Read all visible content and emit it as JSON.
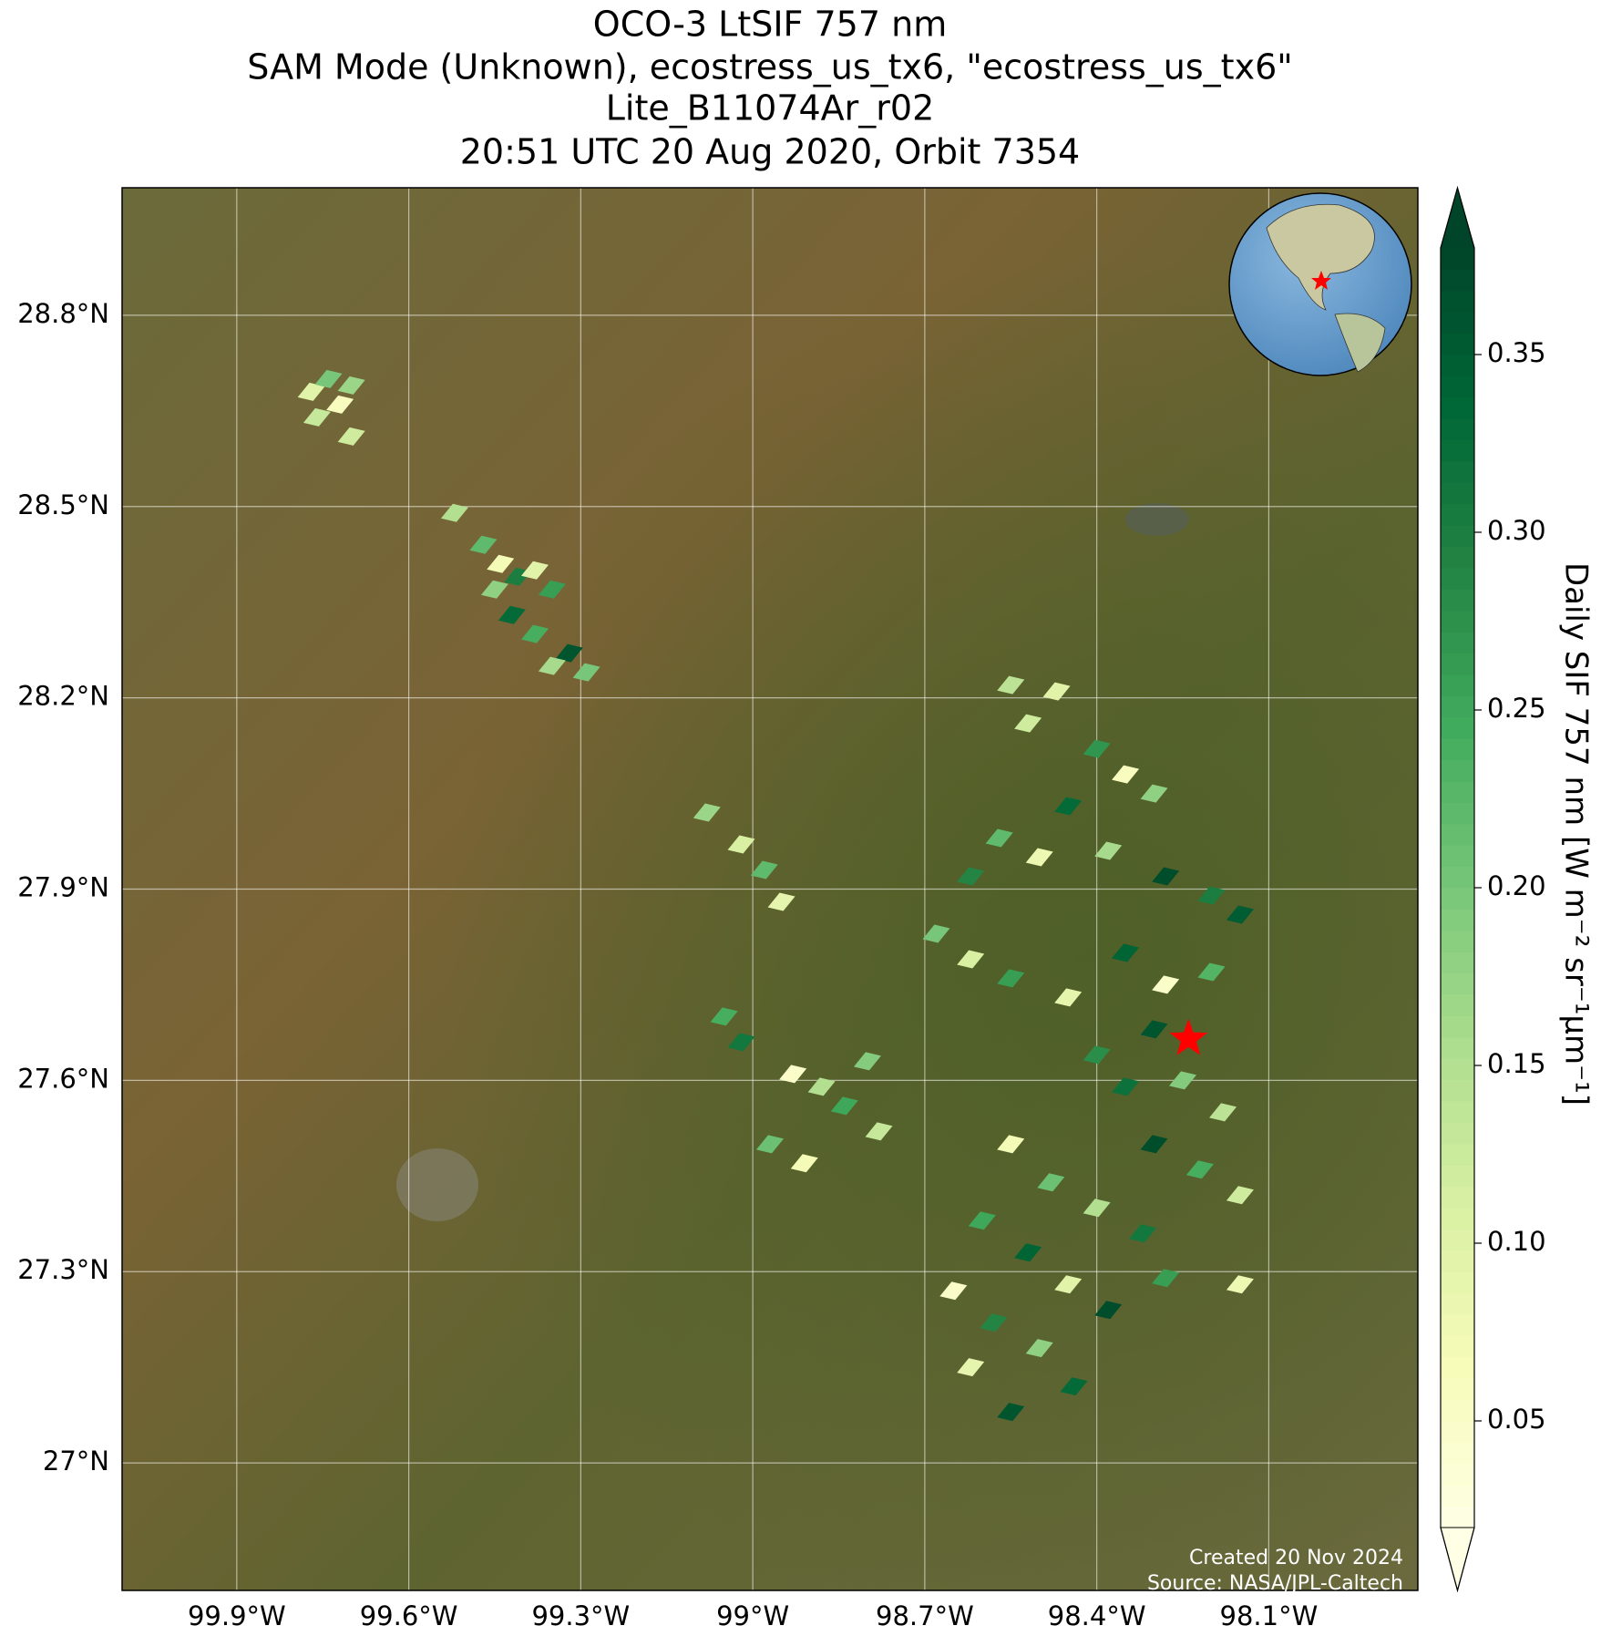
{
  "chart_data": {
    "type": "footprint-map",
    "title": [
      "OCO-3 LtSIF 757 nm",
      "SAM Mode (Unknown), ecostress_us_tx6, \"ecostress_us_tx6\"",
      "Lite_B11074Ar_r02",
      "20:51 UTC 20 Aug 2020, Orbit 7354"
    ],
    "xlim": [
      -100.1,
      -97.84
    ],
    "ylim": [
      26.8,
      29.0
    ],
    "xticks": [
      {
        "value": -99.9,
        "label": "99.9°W"
      },
      {
        "value": -99.6,
        "label": "99.6°W"
      },
      {
        "value": -99.3,
        "label": "99.3°W"
      },
      {
        "value": -99.0,
        "label": "99°W"
      },
      {
        "value": -98.7,
        "label": "98.7°W"
      },
      {
        "value": -98.4,
        "label": "98.4°W"
      },
      {
        "value": -98.1,
        "label": "98.1°W"
      }
    ],
    "yticks": [
      {
        "value": 28.8,
        "label": "28.8°N"
      },
      {
        "value": 28.5,
        "label": "28.5°N"
      },
      {
        "value": 28.2,
        "label": "28.2°N"
      },
      {
        "value": 27.9,
        "label": "27.9°N"
      },
      {
        "value": 27.6,
        "label": "27.6°N"
      },
      {
        "value": 27.3,
        "label": "27.3°N"
      },
      {
        "value": 27.0,
        "label": "27°N"
      }
    ],
    "grid": true,
    "colormap": [
      "#ffffe5",
      "#f7fcb9",
      "#d9f0a3",
      "#addd8e",
      "#78c679",
      "#41ab5d",
      "#238443",
      "#006837",
      "#004529"
    ],
    "clim": [
      0.02,
      0.38
    ],
    "cticks": [
      0.05,
      {
        "value": 0.1,
        "label": "0.10"
      },
      0.15,
      {
        "value": 0.2,
        "label": "0.20"
      },
      0.25,
      {
        "value": 0.3,
        "label": "0.30"
      },
      0.35
    ],
    "colorbar_label": "Daily SIF 757 nm [W m⁻² sr⁻¹µm⁻¹]",
    "site": {
      "lon": -98.24,
      "lat": 27.665,
      "color": "#ff0000"
    },
    "credits": [
      "Created 20 Nov 2024",
      "Source: NASA/JPL-Caltech"
    ],
    "footprints": {
      "lon": [
        -99.77,
        -99.74,
        -99.72,
        -99.7,
        -99.76,
        -99.7,
        -99.52,
        -99.47,
        -99.44,
        -99.41,
        -99.45,
        -99.38,
        -99.35,
        -99.42,
        -99.38,
        -99.32,
        -99.29,
        -99.35,
        -99.08,
        -99.02,
        -98.98,
        -98.95,
        -99.05,
        -99.02,
        -98.93,
        -98.88,
        -98.84,
        -98.8,
        -98.97,
        -98.91,
        -98.78,
        -98.55,
        -98.47,
        -98.52,
        -98.4,
        -98.35,
        -98.3,
        -98.45,
        -98.57,
        -98.62,
        -98.5,
        -98.38,
        -98.28,
        -98.2,
        -98.15,
        -98.68,
        -98.62,
        -98.55,
        -98.45,
        -98.35,
        -98.28,
        -98.2,
        -98.3,
        -98.4,
        -98.35,
        -98.25,
        -98.18,
        -98.3,
        -98.22,
        -98.15,
        -98.55,
        -98.48,
        -98.4,
        -98.32,
        -98.6,
        -98.52,
        -98.45,
        -98.38,
        -98.65,
        -98.58,
        -98.5,
        -98.44,
        -98.62,
        -98.55,
        -98.15,
        -98.28
      ],
      "lat": [
        28.68,
        28.7,
        28.66,
        28.69,
        28.64,
        28.61,
        28.49,
        28.44,
        28.41,
        28.39,
        28.37,
        28.4,
        28.37,
        28.33,
        28.3,
        28.27,
        28.24,
        28.25,
        28.02,
        27.97,
        27.93,
        27.88,
        27.7,
        27.66,
        27.61,
        27.59,
        27.56,
        27.63,
        27.5,
        27.47,
        27.52,
        28.22,
        28.21,
        28.16,
        28.12,
        28.08,
        28.05,
        28.03,
        27.98,
        27.92,
        27.95,
        27.96,
        27.92,
        27.89,
        27.86,
        27.83,
        27.79,
        27.76,
        27.73,
        27.8,
        27.75,
        27.77,
        27.68,
        27.64,
        27.59,
        27.6,
        27.55,
        27.5,
        27.46,
        27.42,
        27.5,
        27.44,
        27.4,
        27.36,
        27.38,
        27.33,
        27.28,
        27.24,
        27.27,
        27.22,
        27.18,
        27.12,
        27.15,
        27.08,
        27.28,
        27.29
      ],
      "values": [
        0.1,
        0.2,
        0.06,
        0.17,
        0.13,
        0.12,
        0.15,
        0.22,
        0.07,
        0.3,
        0.18,
        0.1,
        0.26,
        0.33,
        0.24,
        0.36,
        0.2,
        0.16,
        0.17,
        0.11,
        0.22,
        0.09,
        0.24,
        0.31,
        0.05,
        0.15,
        0.25,
        0.19,
        0.21,
        0.07,
        0.13,
        0.14,
        0.1,
        0.12,
        0.27,
        0.06,
        0.18,
        0.33,
        0.22,
        0.29,
        0.08,
        0.16,
        0.37,
        0.3,
        0.35,
        0.2,
        0.11,
        0.26,
        0.09,
        0.34,
        0.05,
        0.23,
        0.36,
        0.28,
        0.32,
        0.19,
        0.14,
        0.37,
        0.24,
        0.12,
        0.07,
        0.21,
        0.15,
        0.31,
        0.25,
        0.34,
        0.1,
        0.37,
        0.05,
        0.29,
        0.18,
        0.33,
        0.09,
        0.36,
        0.08,
        0.26
      ]
    }
  }
}
